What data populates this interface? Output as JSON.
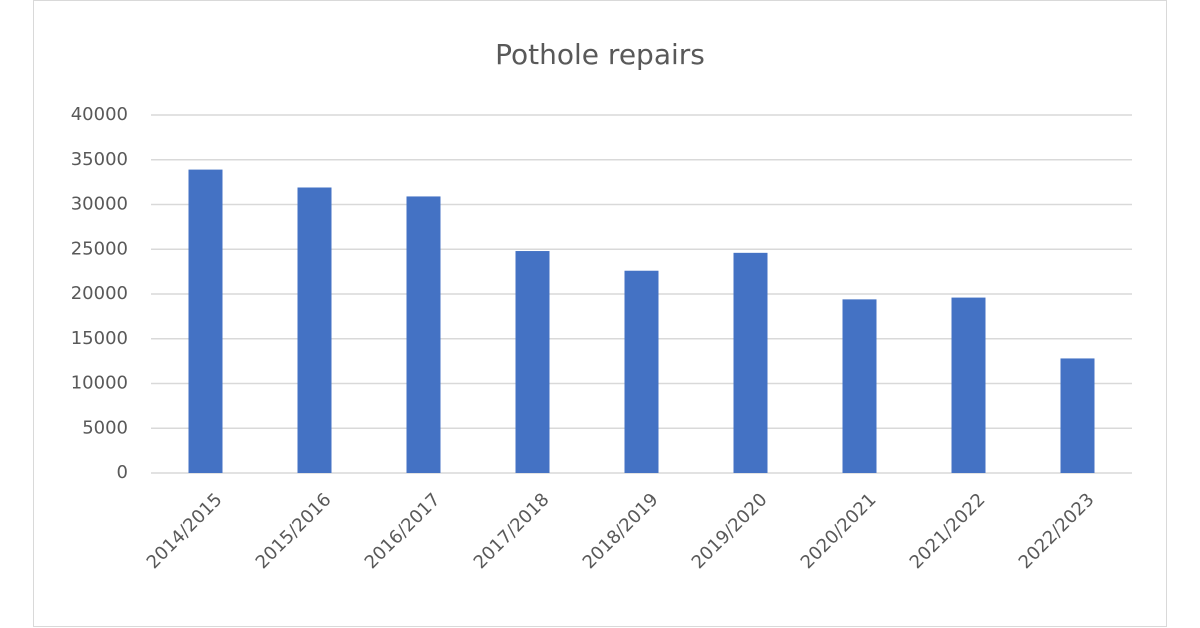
{
  "chart_data": {
    "type": "bar",
    "title": "Pothole repairs",
    "categories": [
      "2014/2015",
      "2015/2016",
      "2016/2017",
      "2017/2018",
      "2018/2019",
      "2019/2020",
      "2020/2021",
      "2021/2022",
      "2022/2023"
    ],
    "values": [
      33900,
      31900,
      30900,
      24800,
      22600,
      24600,
      19400,
      19600,
      12800
    ],
    "color": "#4472c4",
    "ylim": [
      0,
      40000
    ],
    "yticks": [
      0,
      5000,
      10000,
      15000,
      20000,
      25000,
      30000,
      35000,
      40000
    ],
    "grid": true
  }
}
